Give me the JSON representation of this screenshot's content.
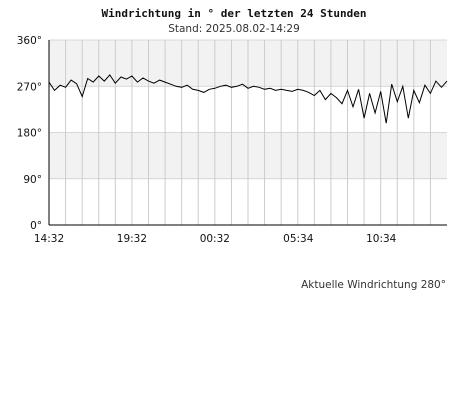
{
  "chart_data": {
    "type": "line",
    "title": "Windrichtung in ° der letzten 24 Stunden",
    "subtitle": "Stand: 2025.08.02-14:29",
    "note": "Aktuelle Windrichtung 280°",
    "y_ticks": [
      "0°",
      "90°",
      "180°",
      "270°",
      "360°"
    ],
    "y_tick_values": [
      0,
      90,
      180,
      270,
      360
    ],
    "ylim": [
      0,
      360
    ],
    "x_ticks": [
      "14:32",
      "19:32",
      "00:32",
      "05:34",
      "10:34"
    ],
    "x_tick_values": [
      0,
      300,
      600,
      902,
      1202
    ],
    "xlim": [
      0,
      1440
    ],
    "band_color": "#f2f2f2",
    "grid_color": "#cccccc",
    "line_color": "#000000",
    "series": [
      {
        "x": [
          0,
          20,
          40,
          60,
          80,
          100,
          120,
          140,
          160,
          180,
          200,
          220,
          240,
          260,
          280,
          300,
          320,
          340,
          360,
          380,
          400,
          420,
          440,
          460,
          480,
          500,
          520,
          540,
          560,
          580,
          600,
          620,
          640,
          660,
          680,
          700,
          720,
          740,
          760,
          780,
          800,
          820,
          840,
          860,
          880,
          900,
          920,
          940,
          960,
          980,
          1000,
          1020,
          1040,
          1060,
          1080,
          1100,
          1120,
          1140,
          1160,
          1180,
          1200,
          1220,
          1240,
          1260,
          1280,
          1300,
          1320,
          1340,
          1360,
          1380,
          1400,
          1420,
          1440
        ],
        "values": [
          278,
          262,
          272,
          268,
          282,
          275,
          250,
          285,
          278,
          290,
          280,
          292,
          276,
          288,
          284,
          290,
          278,
          286,
          280,
          276,
          282,
          278,
          274,
          270,
          268,
          272,
          264,
          262,
          258,
          264,
          266,
          270,
          272,
          268,
          270,
          274,
          266,
          270,
          268,
          264,
          266,
          262,
          264,
          262,
          260,
          264,
          262,
          258,
          252,
          262,
          244,
          256,
          248,
          236,
          262,
          230,
          264,
          208,
          256,
          218,
          260,
          198,
          274,
          240,
          270,
          208,
          262,
          238,
          272,
          256,
          280,
          268,
          280
        ]
      }
    ]
  }
}
